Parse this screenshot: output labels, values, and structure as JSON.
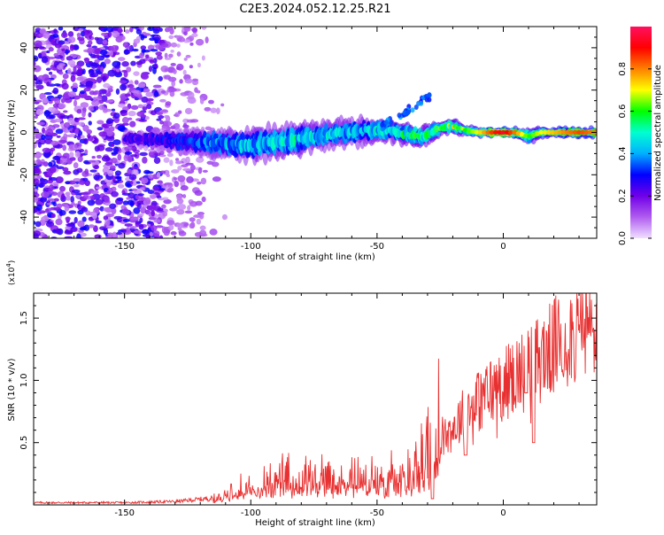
{
  "title": "C2E3.2024.052.12.25.R21",
  "chart_data": [
    {
      "type": "heatmap",
      "xlabel": "Height of straight line (km)",
      "ylabel": "Frequency (Hz)",
      "xlim": [
        -186,
        37
      ],
      "ylim": [
        -50,
        50
      ],
      "x_ticks": [
        -150,
        -100,
        -50,
        0
      ],
      "x_tick_labels": [
        "-150",
        "-100",
        "-50",
        "0"
      ],
      "y_ticks": [
        -40,
        -20,
        0,
        20,
        40
      ],
      "y_tick_labels": [
        "-40",
        "-20",
        "0",
        "20",
        "40"
      ],
      "colorbar": {
        "label": "Normalized spectral amplitude",
        "range": [
          0,
          1
        ],
        "ticks": [
          0.0,
          0.2,
          0.4,
          0.6,
          0.8
        ],
        "tick_labels": [
          "0.0",
          "0.2",
          "0.4",
          "0.6",
          "0.8"
        ],
        "colors": [
          "#f0e0ff",
          "#b05cf0",
          "#7000e8",
          "#0000ff",
          "#00b0ff",
          "#00ffd0",
          "#00ff00",
          "#ffff00",
          "#ff8000",
          "#ff0000",
          "#ff1060"
        ]
      },
      "ridge": {
        "x": [
          -145,
          -130,
          -115,
          -100,
          -85,
          -70,
          -55,
          -45,
          -38,
          -32,
          -25,
          -20,
          -15,
          -10,
          -5,
          0,
          5,
          10,
          15,
          20,
          25,
          30,
          37
        ],
        "y": [
          -3,
          -4,
          -5,
          -6,
          -4,
          -1,
          1,
          1,
          -1,
          -2,
          2,
          3,
          1,
          0,
          0,
          0,
          0,
          -2,
          0,
          0,
          0,
          0,
          0
        ],
        "width_hz": [
          3,
          4,
          5,
          6,
          6,
          5,
          5,
          4,
          4,
          4,
          3,
          3,
          2,
          2,
          2,
          2,
          2,
          3,
          2,
          2,
          2,
          2,
          2
        ],
        "amplitude": [
          0.25,
          0.3,
          0.4,
          0.45,
          0.5,
          0.45,
          0.45,
          0.5,
          0.55,
          0.55,
          0.6,
          0.65,
          0.6,
          0.7,
          0.85,
          0.95,
          0.8,
          0.6,
          0.7,
          0.75,
          0.8,
          0.85,
          0.8
        ]
      },
      "branch": {
        "x": [
          -48,
          -44,
          -40,
          -36,
          -32,
          -29
        ],
        "y": [
          3,
          6,
          9,
          12,
          15,
          17
        ],
        "amplitude": 0.3
      },
      "noise_region": {
        "x_range": [
          -186,
          -115
        ],
        "amplitude": 0.2
      }
    },
    {
      "type": "line",
      "xlabel": "Height of straight line (km)",
      "ylabel": "SNR (10 * v/v)",
      "y_multiplier_label": "(x10",
      "y_multiplier_exp": "4",
      "y_multiplier_close": ")",
      "xlim": [
        -186,
        37
      ],
      "ylim": [
        0,
        1.7
      ],
      "x_ticks": [
        -150,
        -100,
        -50,
        0
      ],
      "x_tick_labels": [
        "-150",
        "-100",
        "-50",
        "0"
      ],
      "y_ticks": [
        0.5,
        1.0,
        1.5
      ],
      "y_tick_labels": [
        "0.5",
        "1.0",
        "1.5"
      ],
      "color": "#e83030",
      "envelope": {
        "x": [
          -186,
          -150,
          -130,
          -115,
          -105,
          -95,
          -85,
          -75,
          -65,
          -55,
          -45,
          -35,
          -30,
          -25,
          -20,
          -15,
          -10,
          -5,
          0,
          5,
          10,
          15,
          20,
          25,
          30,
          37
        ],
        "y": [
          0.02,
          0.02,
          0.03,
          0.06,
          0.12,
          0.18,
          0.2,
          0.2,
          0.22,
          0.2,
          0.22,
          0.3,
          0.45,
          0.6,
          0.7,
          0.85,
          0.95,
          1.05,
          1.1,
          1.2,
          1.25,
          1.35,
          1.45,
          1.55,
          1.6,
          1.6
        ]
      },
      "dips": {
        "x": [
          -15,
          12,
          -28,
          9
        ],
        "y": [
          0.4,
          0.5,
          0.05,
          0.9
        ]
      }
    }
  ]
}
